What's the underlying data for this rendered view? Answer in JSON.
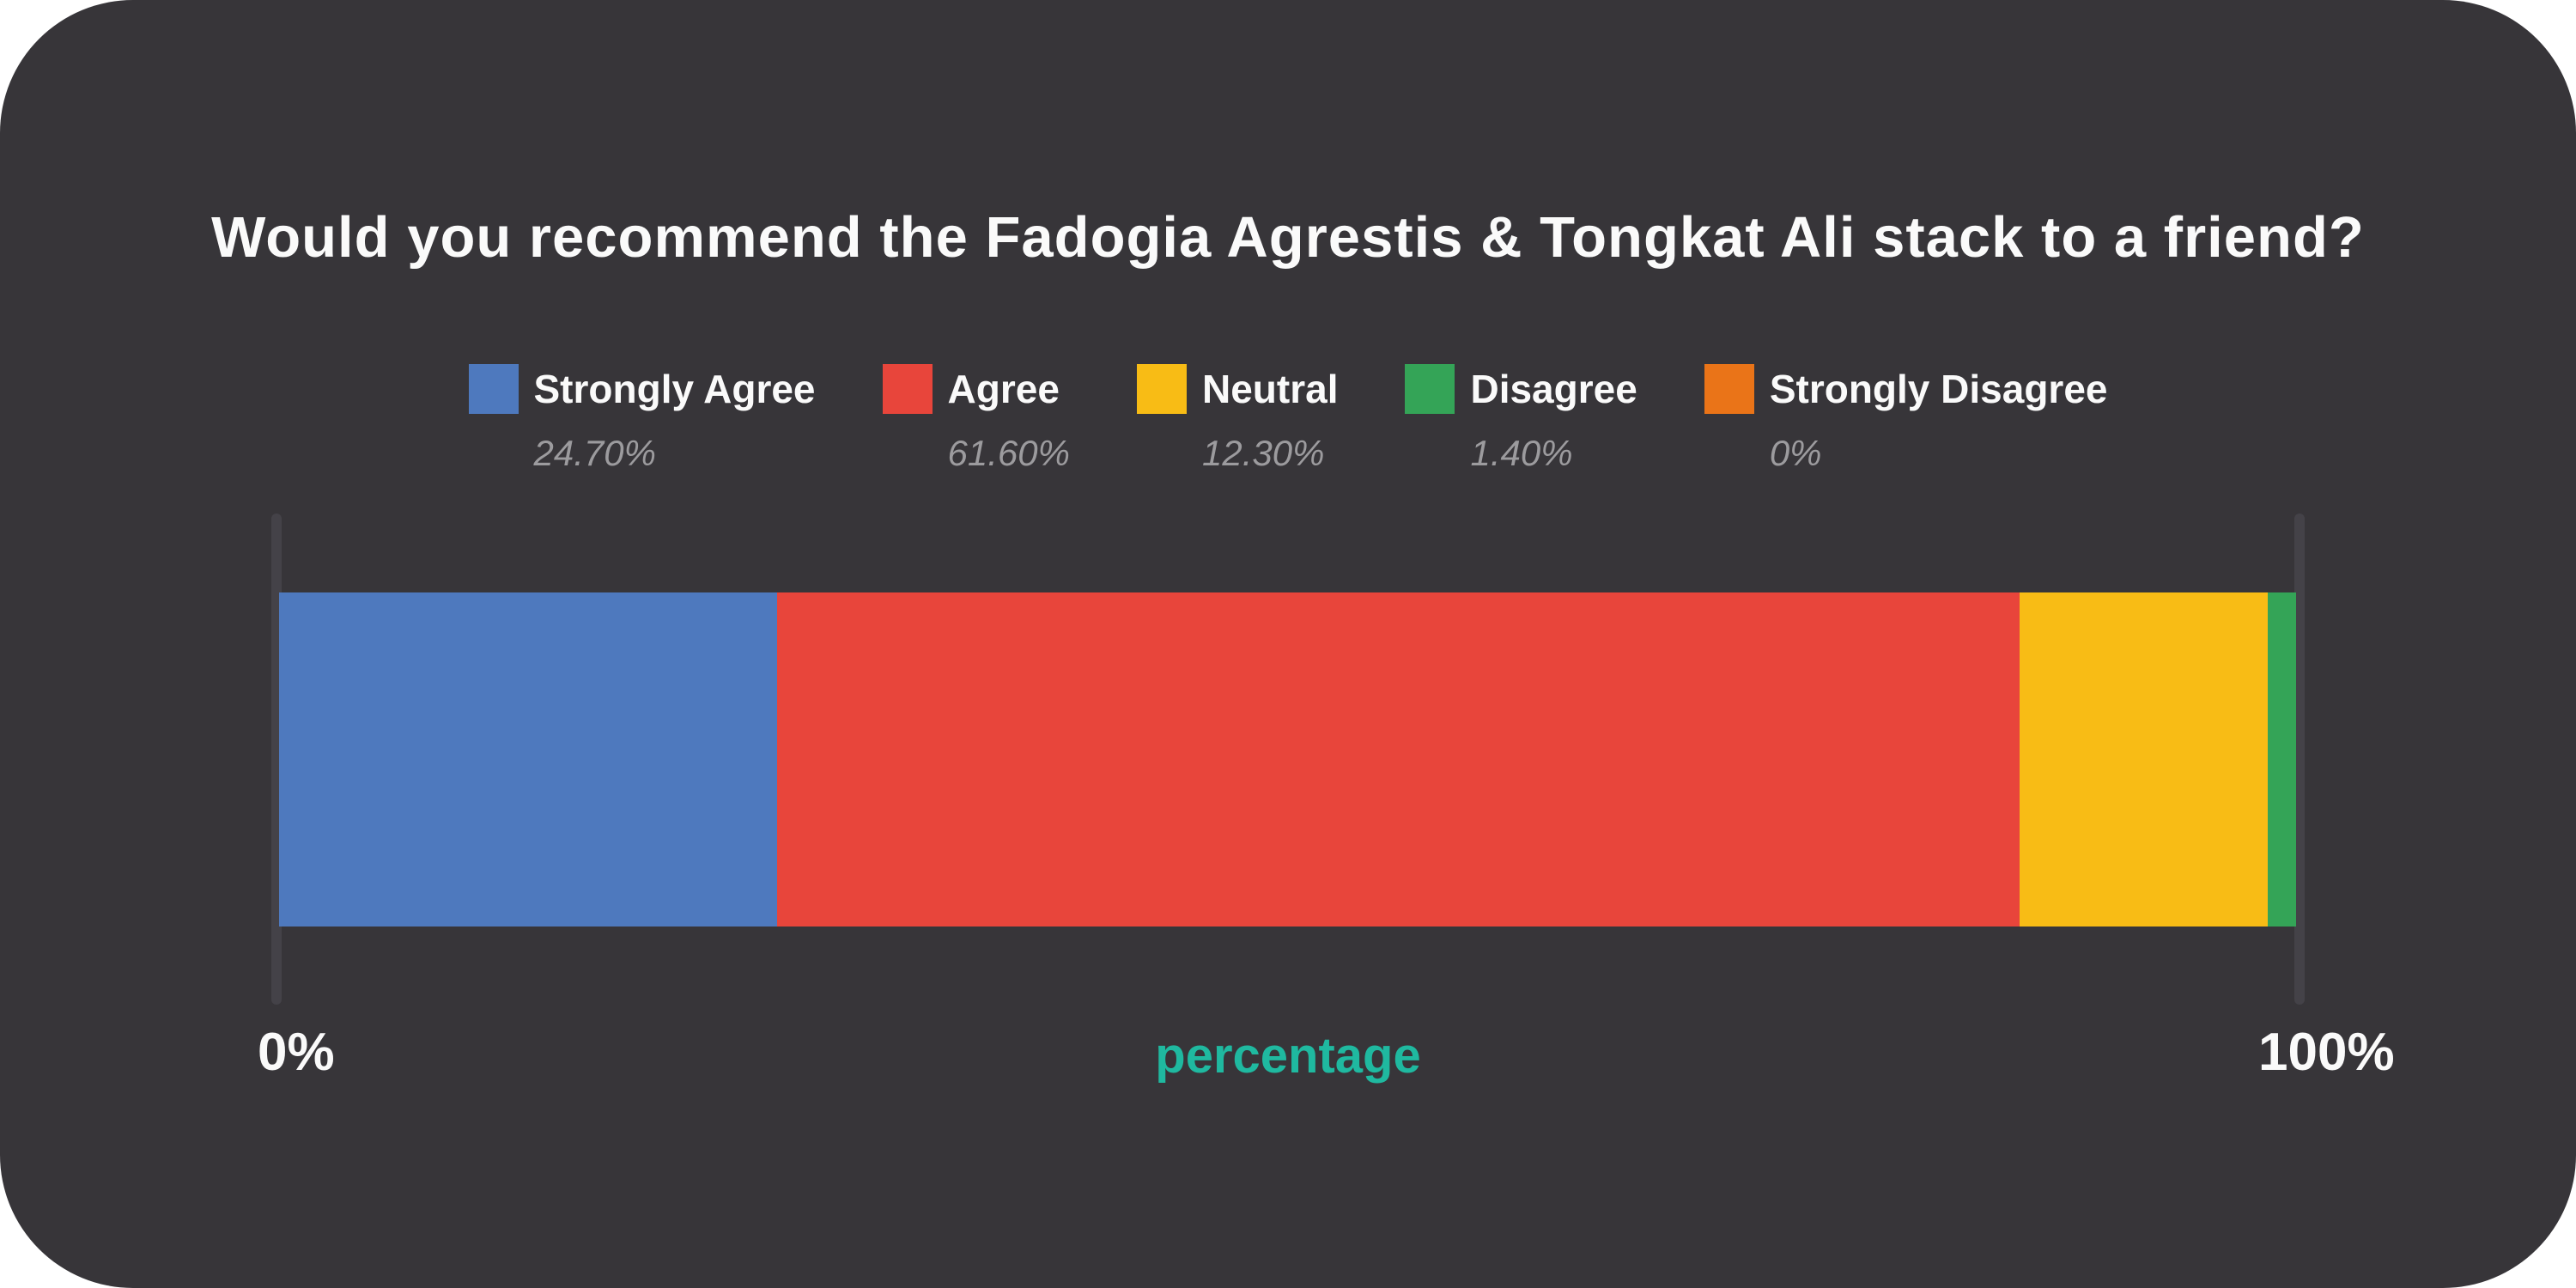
{
  "card": {
    "background": "#373539",
    "page_background": "#FFFFFF"
  },
  "title": {
    "text": "Would you recommend the Fadogia Agrestis & Tongkat Ali stack to a friend?",
    "color": "#FAFAFA"
  },
  "legend": {
    "items": [
      {
        "label": "Strongly Agree",
        "value_label": "24.70%",
        "color": "#4E79BE"
      },
      {
        "label": "Agree",
        "value_label": "61.60%",
        "color": "#E8453B"
      },
      {
        "label": "Neutral",
        "value_label": "12.30%",
        "color": "#F8BC15"
      },
      {
        "label": "Disagree",
        "value_label": "1.40%",
        "color": "#34A457"
      },
      {
        "label": "Strongly Disagree",
        "value_label": "0%",
        "color": "#EA7418"
      }
    ]
  },
  "axis": {
    "min_label": "0%",
    "max_label": "100%",
    "title": "percentage",
    "title_color": "#1FB9A0",
    "tick_color": "#444248"
  },
  "chart_data": {
    "type": "bar",
    "orientation": "horizontal-stacked",
    "title": "Would you recommend the Fadogia Agrestis & Tongkat Ali stack to a friend?",
    "categories": [
      "Strongly Agree",
      "Agree",
      "Neutral",
      "Disagree",
      "Strongly Disagree"
    ],
    "values": [
      24.7,
      61.6,
      12.3,
      1.4,
      0
    ],
    "value_labels": [
      "24.70%",
      "61.60%",
      "12.30%",
      "1.40%",
      "0%"
    ],
    "colors": [
      "#4E79BE",
      "#E8453B",
      "#F8BC15",
      "#34A457",
      "#EA7418"
    ],
    "xlabel": "percentage",
    "ylabel": "",
    "xlim": [
      0,
      100
    ],
    "x_tick_labels": [
      "0%",
      "100%"
    ],
    "legend_position": "top",
    "grid": false
  }
}
